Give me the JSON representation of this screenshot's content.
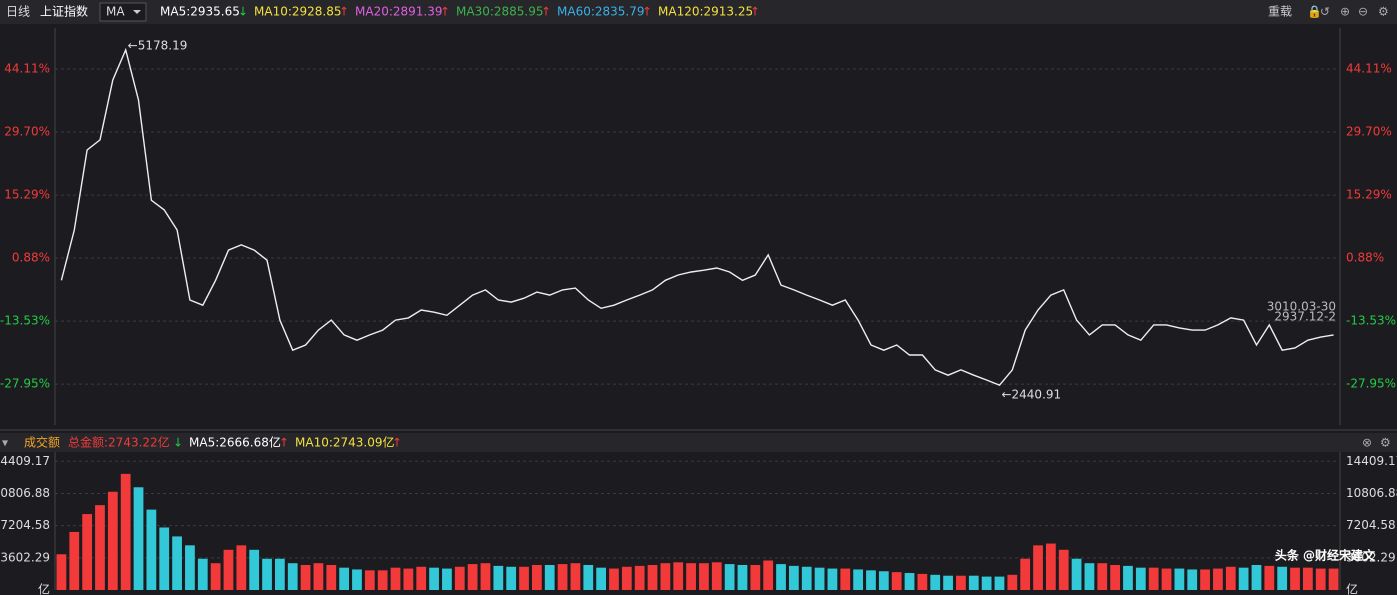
{
  "toolbar": {
    "period": "日线",
    "symbol": "上证指数",
    "indicator": "MA",
    "reload": "重载",
    "items": [
      {
        "label": "MA5:2935.65",
        "arrow": "↓",
        "color": "#ffffff"
      },
      {
        "label": "MA10:2928.85",
        "arrow": "↑",
        "color": "#f5e13c"
      },
      {
        "label": "MA20:2891.39",
        "arrow": "↑",
        "color": "#e060e0"
      },
      {
        "label": "MA30:2885.95",
        "arrow": "↑",
        "color": "#3cb44b"
      },
      {
        "label": "MA60:2835.79",
        "arrow": "↑",
        "color": "#3ab0e8"
      },
      {
        "label": "MA120:2913.25",
        "arrow": "↑",
        "color": "#f5e13c"
      }
    ]
  },
  "volume_header": {
    "title": "成交额",
    "items": [
      {
        "label": "总金额:2743.22亿",
        "arrow": "↓",
        "color": "#f23a3a"
      },
      {
        "label": "MA5:2666.68亿",
        "arrow": "↑",
        "color": "#ffffff"
      },
      {
        "label": "MA10:2743.09亿",
        "arrow": "↑",
        "color": "#f5e13c"
      }
    ]
  },
  "watermark": "头条 @财经宋建文",
  "chart_data": [
    {
      "type": "line",
      "color": "#eeeeee",
      "grid": true,
      "ylim": [
        -37.3,
        53.5
      ],
      "yticks": [
        {
          "value": 44.11,
          "label": "44.11%"
        },
        {
          "value": 29.7,
          "label": "29.70%"
        },
        {
          "value": 15.29,
          "label": "15.29%"
        },
        {
          "value": 0.88,
          "label": "0.88%"
        },
        {
          "value": -13.53,
          "label": "-13.53%"
        },
        {
          "value": -27.95,
          "label": "-27.95%"
        }
      ],
      "annotations": {
        "high": "←5178.19",
        "low": "←2440.91",
        "right": [
          "3010.03-30",
          "2937.12-2"
        ]
      },
      "values": [
        -4.2,
        7.3,
        25.6,
        27.9,
        41.6,
        48.5,
        37.0,
        14.1,
        11.9,
        7.3,
        -8.7,
        -9.9,
        -4.2,
        2.7,
        3.9,
        2.7,
        0.4,
        -13.3,
        -20.2,
        -19.0,
        -15.6,
        -13.3,
        -16.7,
        -17.9,
        -16.7,
        -15.6,
        -13.3,
        -12.8,
        -11.0,
        -11.5,
        -12.2,
        -9.9,
        -7.6,
        -6.4,
        -8.7,
        -9.2,
        -8.3,
        -6.9,
        -7.6,
        -6.4,
        -6.0,
        -8.7,
        -10.6,
        -9.9,
        -8.7,
        -7.6,
        -6.4,
        -4.2,
        -3.0,
        -2.3,
        -1.9,
        -1.4,
        -2.3,
        -4.2,
        -3.0,
        1.6,
        -5.3,
        -6.4,
        -7.6,
        -8.7,
        -9.9,
        -8.7,
        -13.3,
        -19.0,
        -20.2,
        -19.0,
        -21.3,
        -21.3,
        -24.7,
        -25.9,
        -24.7,
        -25.9,
        -27.0,
        -28.2,
        -24.7,
        -15.6,
        -11.0,
        -7.6,
        -6.4,
        -13.3,
        -16.7,
        -14.4,
        -14.4,
        -16.7,
        -17.9,
        -14.4,
        -14.4,
        -15.1,
        -15.6,
        -15.6,
        -14.4,
        -12.8,
        -13.3,
        -19.0,
        -14.4,
        -20.2,
        -19.7,
        -17.9,
        -17.2,
        -16.7
      ]
    },
    {
      "type": "bar",
      "up_color": "#f23a3a",
      "down_color": "#32c8d8",
      "grid": true,
      "ylim": [
        0,
        15450
      ],
      "yticks": [
        14409.17,
        10806.88,
        7204.58,
        3602.29,
        {
          "value": 0,
          "label": "亿"
        }
      ],
      "values": [
        4000,
        6500,
        8500,
        9500,
        11000,
        13000,
        11500,
        9000,
        7000,
        6000,
        5000,
        3500,
        3000,
        4500,
        5000,
        4500,
        3500,
        3500,
        3000,
        2800,
        3000,
        2800,
        2500,
        2300,
        2200,
        2200,
        2500,
        2400,
        2600,
        2500,
        2400,
        2600,
        2900,
        3000,
        2700,
        2600,
        2600,
        2800,
        2800,
        2900,
        3000,
        2800,
        2500,
        2400,
        2600,
        2700,
        2800,
        3000,
        3100,
        3000,
        3000,
        3100,
        2900,
        2800,
        2800,
        3300,
        2900,
        2700,
        2600,
        2500,
        2400,
        2400,
        2300,
        2200,
        2100,
        2000,
        1900,
        1800,
        1700,
        1600,
        1600,
        1600,
        1500,
        1500,
        1700,
        3500,
        5000,
        5200,
        4500,
        3500,
        3000,
        3000,
        2800,
        2700,
        2500,
        2500,
        2400,
        2400,
        2300,
        2300,
        2400,
        2600,
        2500,
        2800,
        2700,
        2600,
        2500,
        2500,
        2400,
        2400
      ]
    }
  ]
}
